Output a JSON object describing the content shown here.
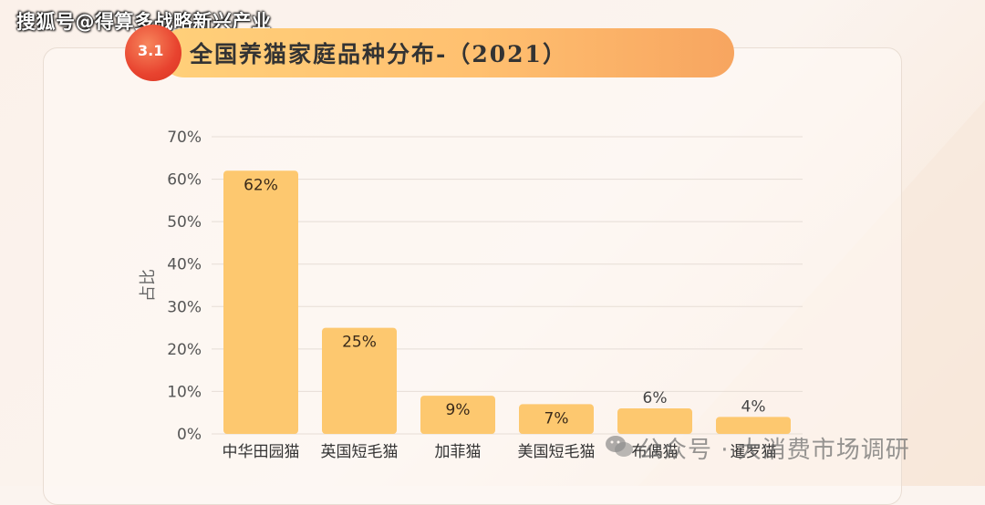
{
  "header": {
    "watermark": "搜狐号@得算多战略新兴产业",
    "badge": "3.1",
    "title": "全国养猫家庭品种分布-（2021）"
  },
  "footer": {
    "watermark": "公众号 · 大消费市场调研"
  },
  "chart_data": {
    "type": "bar",
    "title": "",
    "xlabel": "",
    "ylabel": "占比",
    "ylim": [
      0,
      70
    ],
    "yticks": [
      "0%",
      "10%",
      "20%",
      "30%",
      "40%",
      "50%",
      "60%",
      "70%"
    ],
    "grid": true,
    "categories": [
      "中华田园猫",
      "英国短毛猫",
      "加菲猫",
      "美国短毛猫",
      "布偶猫",
      "暹罗猫"
    ],
    "values": [
      62,
      25,
      9,
      7,
      6,
      4
    ],
    "value_labels": [
      "62%",
      "25%",
      "9%",
      "7%",
      "6%",
      "4%"
    ],
    "bar_color": "#fdc86f",
    "label_inside_color": "#3a2a1a"
  }
}
